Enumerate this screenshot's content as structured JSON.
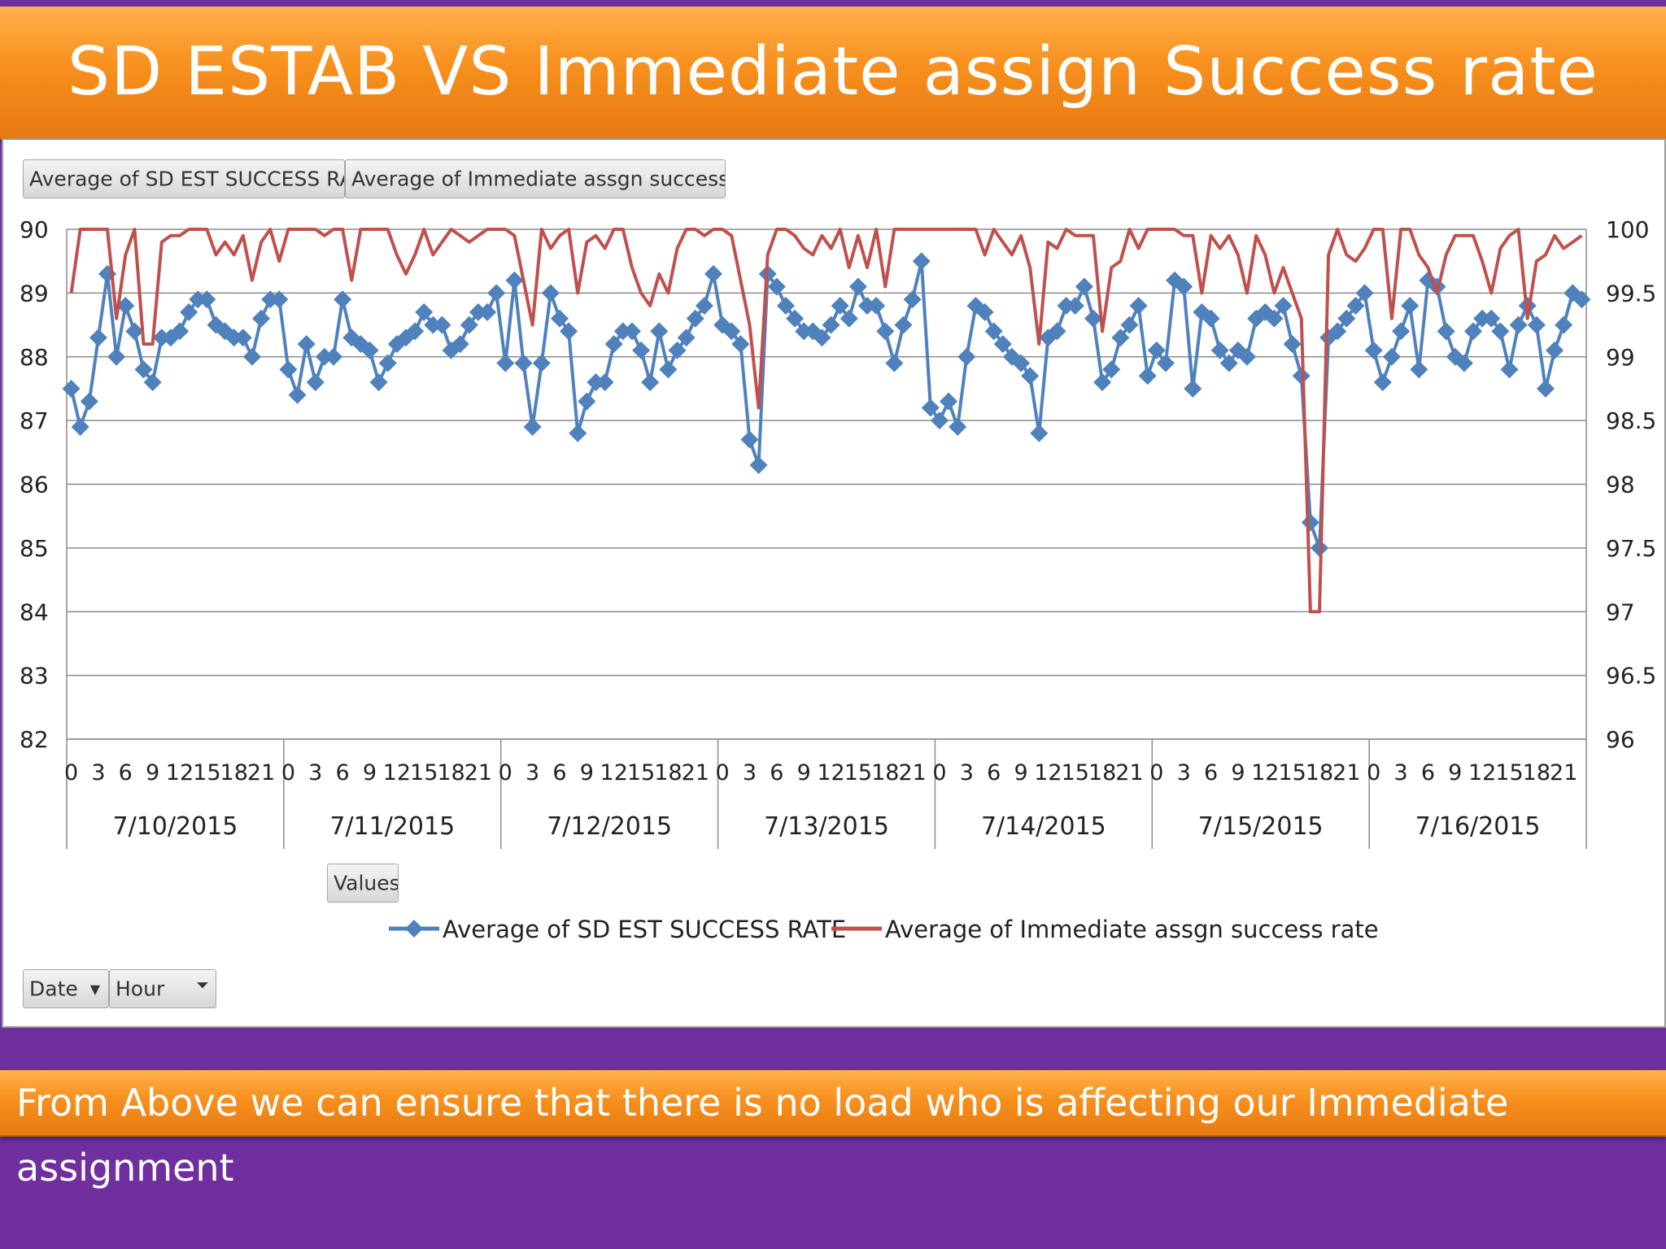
{
  "slide": {
    "title": "SD ESTAB VS Immediate assign Success rate",
    "footer": "From Above we can ensure that there is no load who is affecting our Immediate assignment"
  },
  "pivot": {
    "data_buttons": [
      "Average of SD EST SUCCESS RATE",
      "Average of Immediate assgn success rate"
    ],
    "values_button": "Values",
    "axis_buttons": [
      "Date",
      "Hour"
    ]
  },
  "colors": {
    "sd": "#4f81bd",
    "ia": "#c0504d",
    "banner": "#f7901e",
    "background": "#6f2f9f"
  },
  "chart_data": {
    "type": "line",
    "title": "",
    "y_left": {
      "ylim": [
        82,
        90
      ],
      "ticks": [
        "82",
        "83",
        "84",
        "85",
        "86",
        "87",
        "88",
        "89",
        "90"
      ]
    },
    "y_right": {
      "ylim": [
        96,
        100
      ],
      "ticks": [
        "96",
        "96.5",
        "97",
        "97.5",
        "98",
        "98.5",
        "99",
        "99.5",
        "100"
      ]
    },
    "grid": true,
    "legend_position": "bottom",
    "dates": [
      "7/10/2015",
      "7/11/2015",
      "7/12/2015",
      "7/13/2015",
      "7/14/2015",
      "7/15/2015",
      "7/16/2015"
    ],
    "hour_tick_labels": [
      "0",
      "3",
      "6",
      "9",
      "12",
      "15",
      "18",
      "21"
    ],
    "x_note": "24 hourly points per date (hours 0-23)",
    "series": [
      {
        "name": "Average of SD EST SUCCESS RATE",
        "axis": "left",
        "marker": "diamond",
        "values": [
          [
            87.5,
            86.9,
            87.3,
            88.3,
            89.3,
            88.0,
            88.8,
            88.4,
            87.8,
            87.6,
            88.3,
            88.3,
            88.4,
            88.7,
            88.9,
            88.9,
            88.5,
            88.4,
            88.3,
            88.3,
            88.0,
            88.6,
            88.9,
            88.9
          ],
          [
            87.8,
            87.4,
            88.2,
            87.6,
            88.0,
            88.0,
            88.9,
            88.3,
            88.2,
            88.1,
            87.6,
            87.9,
            88.2,
            88.3,
            88.4,
            88.7,
            88.5,
            88.5,
            88.1,
            88.2,
            88.5,
            88.7,
            88.7,
            89.0
          ],
          [
            87.9,
            89.2,
            87.9,
            86.9,
            87.9,
            89.0,
            88.6,
            88.4,
            86.8,
            87.3,
            87.6,
            87.6,
            88.2,
            88.4,
            88.4,
            88.1,
            87.6,
            88.4,
            87.8,
            88.1,
            88.3,
            88.6,
            88.8,
            89.3
          ],
          [
            88.5,
            88.4,
            88.2,
            86.7,
            86.3,
            89.3,
            89.1,
            88.8,
            88.6,
            88.4,
            88.4,
            88.3,
            88.5,
            88.8,
            88.6,
            89.1,
            88.8,
            88.8,
            88.4,
            87.9,
            88.5,
            88.9,
            89.5,
            87.2
          ],
          [
            87.0,
            87.3,
            86.9,
            88.0,
            88.8,
            88.7,
            88.4,
            88.2,
            88.0,
            87.9,
            87.7,
            86.8,
            88.3,
            88.4,
            88.8,
            88.8,
            89.1,
            88.6,
            87.6,
            87.8,
            88.3,
            88.5,
            88.8,
            87.7
          ],
          [
            88.1,
            87.9,
            89.2,
            89.1,
            87.5,
            88.7,
            88.6,
            88.1,
            87.9,
            88.1,
            88.0,
            88.6,
            88.7,
            88.6,
            88.8,
            88.2,
            87.7,
            85.4,
            85.0,
            88.3,
            88.4,
            88.6,
            88.8,
            89.0
          ],
          [
            88.1,
            87.6,
            88.0,
            88.4,
            88.8,
            87.8,
            89.2,
            89.1,
            88.4,
            88.0,
            87.9,
            88.4,
            88.6,
            88.6,
            88.4,
            87.8,
            88.5,
            88.8,
            88.5,
            87.5,
            88.1,
            88.5,
            89.0,
            88.9
          ]
        ]
      },
      {
        "name": "Average of Immediate assgn success rate",
        "axis": "right",
        "marker": "none",
        "values": [
          [
            99.5,
            100.0,
            100.0,
            100.0,
            100.0,
            99.3,
            99.8,
            100.0,
            99.1,
            99.1,
            99.9,
            99.95,
            99.95,
            100.0,
            100.0,
            100.0,
            99.8,
            99.9,
            99.8,
            99.95,
            99.6,
            99.9,
            100.0,
            99.75
          ],
          [
            100.0,
            100.0,
            100.0,
            100.0,
            99.95,
            100.0,
            100.0,
            99.6,
            100.0,
            100.0,
            100.0,
            100.0,
            99.8,
            99.65,
            99.8,
            100.0,
            99.8,
            99.9,
            100.0,
            99.95,
            99.9,
            99.95,
            100.0,
            100.0
          ],
          [
            100.0,
            99.95,
            99.6,
            99.25,
            100.0,
            99.85,
            99.95,
            100.0,
            99.5,
            99.9,
            99.95,
            99.85,
            100.0,
            100.0,
            99.7,
            99.5,
            99.4,
            99.65,
            99.5,
            99.85,
            100.0,
            100.0,
            99.95,
            100.0
          ],
          [
            100.0,
            99.95,
            99.6,
            99.25,
            98.6,
            99.8,
            100.0,
            100.0,
            99.95,
            99.85,
            99.8,
            99.95,
            99.85,
            100.0,
            99.7,
            99.95,
            99.7,
            100.0,
            99.55,
            100.0,
            100.0,
            100.0,
            100.0,
            100.0
          ],
          [
            100.0,
            100.0,
            100.0,
            100.0,
            100.0,
            99.8,
            100.0,
            99.9,
            99.8,
            99.95,
            99.7,
            99.1,
            99.9,
            99.85,
            100.0,
            99.95,
            99.95,
            99.95,
            99.2,
            99.7,
            99.75,
            100.0,
            99.85,
            100.0
          ],
          [
            100.0,
            100.0,
            100.0,
            99.95,
            99.95,
            99.5,
            99.95,
            99.85,
            99.95,
            99.8,
            99.5,
            99.95,
            99.8,
            99.5,
            99.7,
            99.5,
            99.3,
            97.0,
            97.0,
            99.8,
            100.0,
            99.8,
            99.75,
            99.85
          ],
          [
            100.0,
            100.0,
            99.3,
            100.0,
            100.0,
            99.8,
            99.7,
            99.5,
            99.8,
            99.95,
            99.95,
            99.95,
            99.75,
            99.5,
            99.85,
            99.95,
            100.0,
            99.3,
            99.75,
            99.8,
            99.95,
            99.85,
            99.9,
            99.95
          ]
        ]
      }
    ]
  }
}
